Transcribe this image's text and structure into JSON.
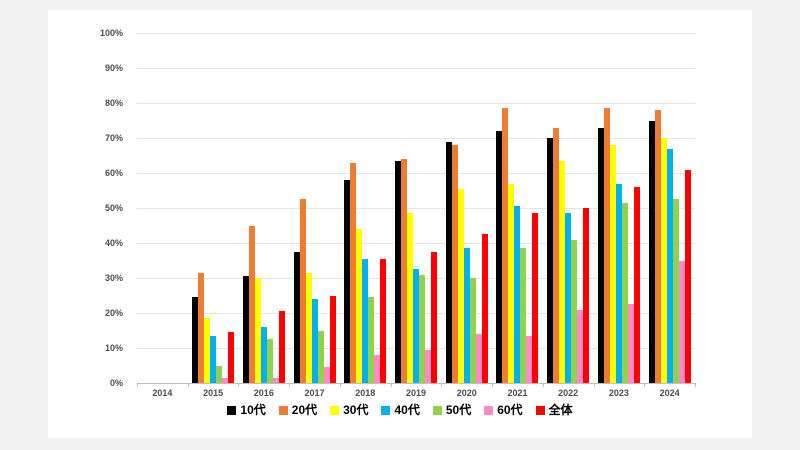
{
  "chart_data": {
    "type": "bar",
    "title": "",
    "categories": [
      "2014",
      "2015",
      "2016",
      "2017",
      "2018",
      "2019",
      "2020",
      "2021",
      "2022",
      "2023",
      "2024"
    ],
    "series": [
      {
        "name": "10代",
        "color": "#000000",
        "values": [
          0,
          24.5,
          30.5,
          37.5,
          58,
          63.5,
          69,
          72,
          70,
          73,
          75
        ]
      },
      {
        "name": "20代",
        "color": "#ED7D31",
        "values": [
          0,
          31.5,
          45,
          52.5,
          63,
          64,
          68,
          78.5,
          73,
          78.5,
          78
        ]
      },
      {
        "name": "30代",
        "color": "#FFFF00",
        "values": [
          0,
          18.5,
          30,
          31.5,
          44,
          48.5,
          55.5,
          57,
          63.5,
          68,
          70
        ]
      },
      {
        "name": "40代",
        "color": "#00B0F0",
        "values": [
          0,
          13.5,
          16,
          24,
          35.5,
          32.5,
          38.5,
          50.5,
          48.5,
          57,
          67
        ]
      },
      {
        "name": "50代",
        "color": "#92D050",
        "values": [
          0,
          5,
          12.5,
          15,
          24.5,
          31,
          30,
          38.5,
          41,
          51.5,
          52.5
        ]
      },
      {
        "name": "60代",
        "color": "#FF8AC4",
        "values": [
          0,
          1.5,
          1.5,
          4.5,
          8,
          9.5,
          14,
          13.5,
          21,
          22.5,
          35
        ]
      },
      {
        "name": "全体",
        "color": "#FF0000",
        "values": [
          0,
          14.5,
          20.5,
          25,
          35.5,
          37.5,
          42.5,
          48.5,
          50,
          56,
          61
        ]
      }
    ],
    "y_axis": {
      "min": 0,
      "max": 100,
      "step": 10,
      "tick_labels": [
        "0%",
        "10%",
        "20%",
        "30%",
        "40%",
        "50%",
        "60%",
        "70%",
        "80%",
        "90%",
        "100%"
      ]
    },
    "x_axis": {
      "tick_labels": [
        "2014",
        "2015",
        "2016",
        "2017",
        "2018",
        "2019",
        "2020",
        "2021",
        "2022",
        "2023",
        "2024"
      ]
    },
    "grid": true,
    "legend_position": "bottom",
    "colors": {
      "background": "#ffffff",
      "page_background": "#f1f1f1",
      "gridline": "#e4e4e4",
      "axis_line": "#bfbfbf",
      "tick_label": "#4d4d4d"
    }
  }
}
